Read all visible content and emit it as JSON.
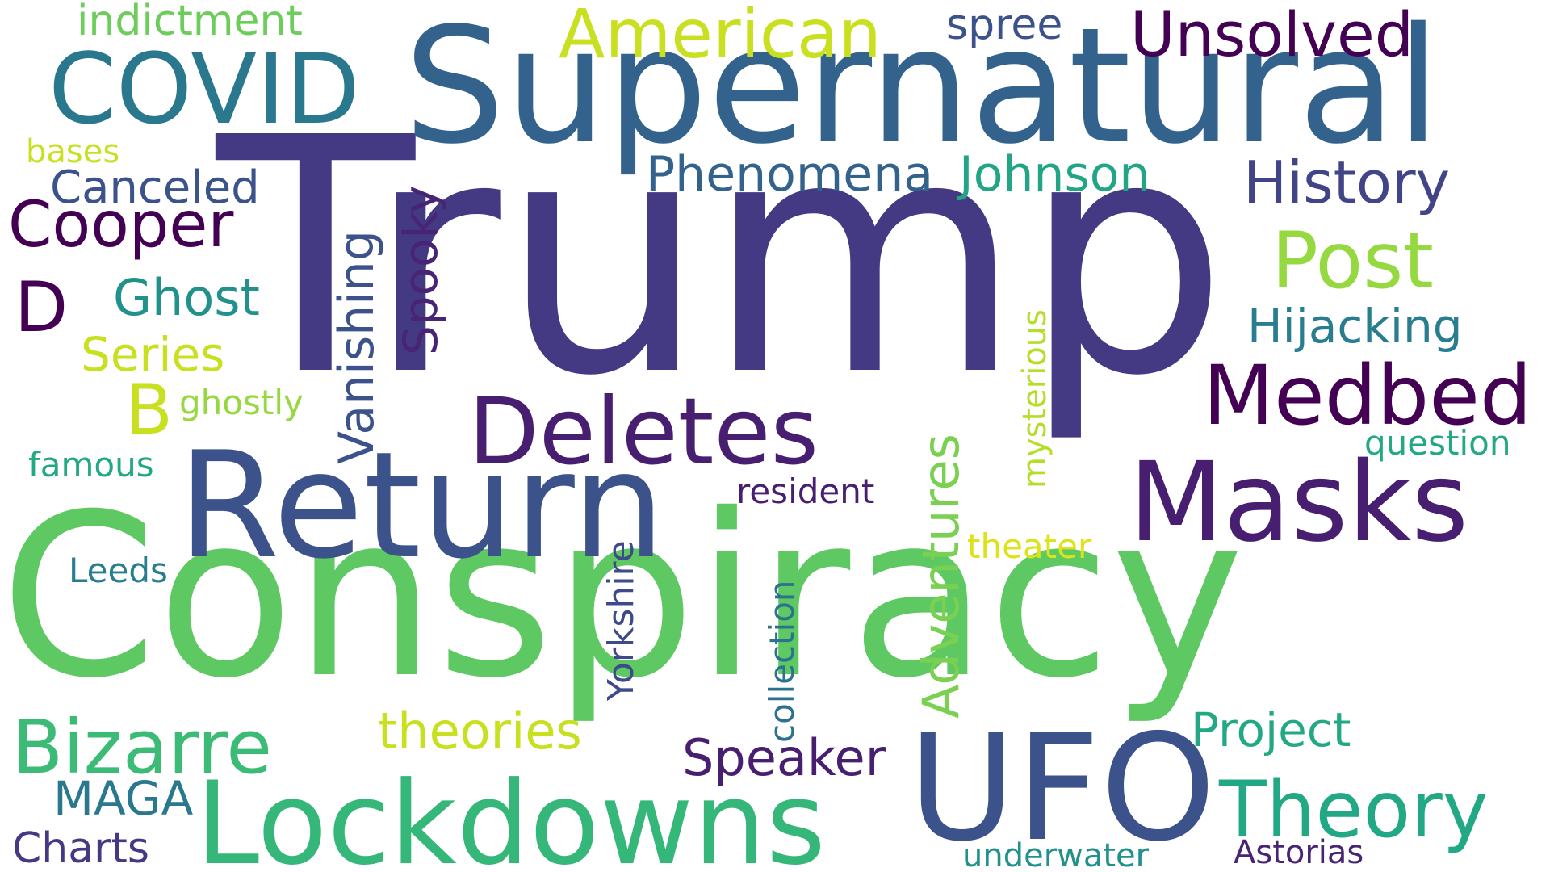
{
  "words": [
    {
      "text": "Trump",
      "color": "#443983"
    },
    {
      "text": "Conspiracy",
      "color": "#5ec962"
    },
    {
      "text": "Supernatural",
      "color": "#33638d"
    },
    {
      "text": "Return",
      "color": "#3b528b"
    },
    {
      "text": "UFO",
      "color": "#3b528b"
    },
    {
      "text": "Lockdowns",
      "color": "#35b779"
    },
    {
      "text": "Masks",
      "color": "#481f70"
    },
    {
      "text": "Deletes",
      "color": "#481f70"
    },
    {
      "text": "Medbed",
      "color": "#440154"
    },
    {
      "text": "COVID",
      "color": "#2a788e"
    },
    {
      "text": "Post",
      "color": "#95d840"
    },
    {
      "text": "Theory",
      "color": "#22a884"
    },
    {
      "text": "Bizarre",
      "color": "#3bbb75"
    },
    {
      "text": "American",
      "color": "#c8e020"
    },
    {
      "text": "Unsolved",
      "color": "#440154"
    },
    {
      "text": "History",
      "color": "#414487"
    },
    {
      "text": "Cooper",
      "color": "#440154"
    },
    {
      "text": "Hijacking",
      "color": "#287d8e"
    },
    {
      "text": "Phenomena",
      "color": "#33638d"
    },
    {
      "text": "Johnson",
      "color": "#21a585"
    },
    {
      "text": "Canceled",
      "color": "#3b528b"
    },
    {
      "text": "Ghost",
      "color": "#21918c"
    },
    {
      "text": "Series",
      "color": "#c8e020"
    },
    {
      "text": "D",
      "color": "#440154"
    },
    {
      "text": "B",
      "color": "#c8e020"
    },
    {
      "text": "theories",
      "color": "#c8e020"
    },
    {
      "text": "Project",
      "color": "#22a884"
    },
    {
      "text": "Speaker",
      "color": "#481f70"
    },
    {
      "text": "MAGA",
      "color": "#2a788e"
    },
    {
      "text": "Charts",
      "color": "#443983"
    },
    {
      "text": "spree",
      "color": "#3b528b"
    },
    {
      "text": "indictment",
      "color": "#6ccd5a"
    },
    {
      "text": "bases",
      "color": "#c8e020"
    },
    {
      "text": "ghostly",
      "color": "#95d840"
    },
    {
      "text": "famous",
      "color": "#22a884"
    },
    {
      "text": "Leeds",
      "color": "#287d8e"
    },
    {
      "text": "question",
      "color": "#22a884"
    },
    {
      "text": "theater",
      "color": "#dde318"
    },
    {
      "text": "resident",
      "color": "#481f70"
    },
    {
      "text": "underwater",
      "color": "#21918c"
    },
    {
      "text": "Astorias",
      "color": "#482475"
    },
    {
      "text": "Vanishing",
      "color": "#3b528b"
    },
    {
      "text": "Spooky",
      "color": "#482475"
    },
    {
      "text": "Adventures",
      "color": "#7ad151"
    },
    {
      "text": "mysterious",
      "color": "#b5de2b"
    },
    {
      "text": "Yorkshire",
      "color": "#3e4a89"
    },
    {
      "text": "collection",
      "color": "#2c728e"
    }
  ]
}
